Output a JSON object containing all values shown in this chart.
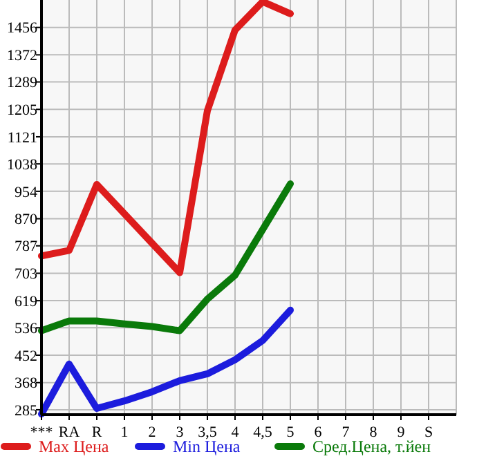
{
  "chart_data": {
    "type": "line",
    "categories": [
      "***",
      "RA",
      "R",
      "1",
      "2",
      "3",
      "3,5",
      "4",
      "4,5",
      "5",
      "6",
      "7",
      "8",
      "9",
      "S"
    ],
    "ylim": [
      270,
      1540
    ],
    "yticks": [
      285,
      368,
      452,
      536,
      619,
      703,
      787,
      870,
      954,
      1038,
      1121,
      1205,
      1289,
      1372,
      1456
    ],
    "grid": true,
    "legend": "bottom",
    "marker": "none",
    "line_style": "solid",
    "series": [
      {
        "name": "Max Цена",
        "color": "#dd1c1c",
        "values": [
          756,
          773,
          975,
          885,
          795,
          705,
          1201,
          1448,
          1535,
          1498,
          null,
          null,
          null,
          null,
          null
        ]
      },
      {
        "name": "Min Цена",
        "color": "#1c1cdd",
        "values": [
          272,
          425,
          289,
          312,
          340,
          374,
          395,
          438,
          497,
          590,
          null,
          null,
          null,
          null,
          null
        ]
      },
      {
        "name": "Сред.Цена, т.йен",
        "color": "#0a7a0a",
        "values": [
          527,
          557,
          557,
          548,
          540,
          527,
          624,
          697,
          837,
          977,
          null,
          null,
          null,
          null,
          null
        ]
      }
    ]
  }
}
